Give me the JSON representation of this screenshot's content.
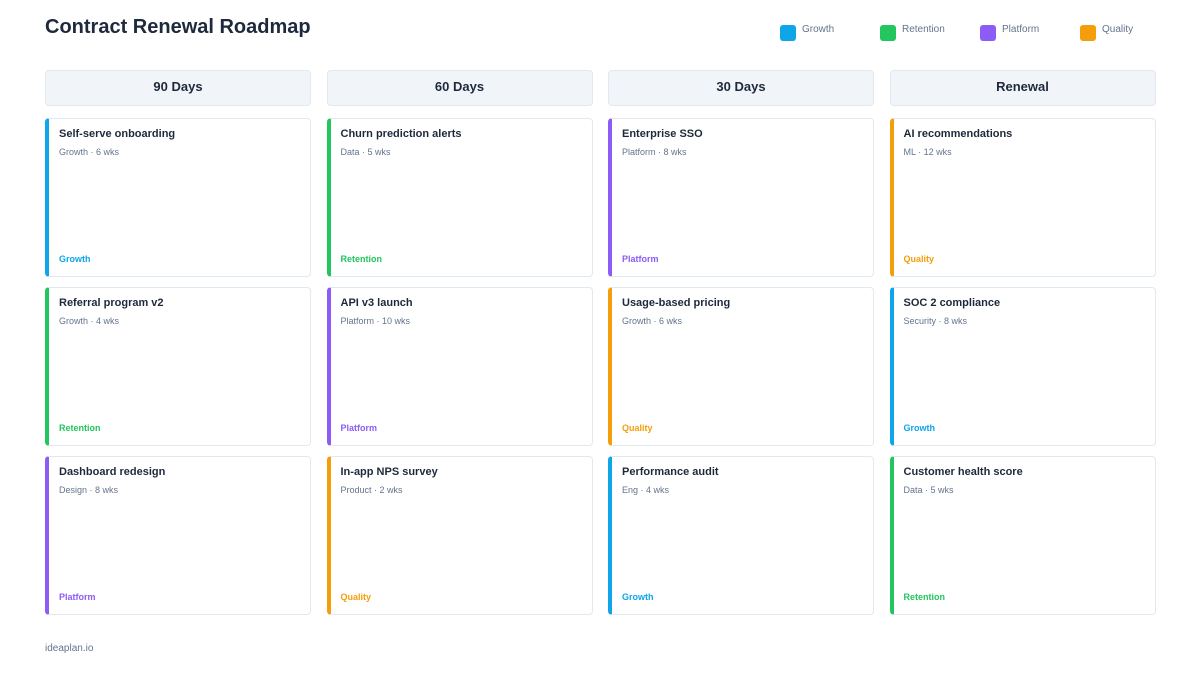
{
  "header": {
    "title": "Contract Renewal Roadmap"
  },
  "legend": [
    {
      "name": "Growth",
      "color": "#0ea5e9"
    },
    {
      "name": "Retention",
      "color": "#22c55e"
    },
    {
      "name": "Platform",
      "color": "#8b5cf6"
    },
    {
      "name": "Quality",
      "color": "#f59e0b"
    }
  ],
  "columns": [
    {
      "title": "90 Days",
      "cards": [
        {
          "title": "Self-serve onboarding",
          "meta": "Growth · 6 wks",
          "tag": "Growth"
        },
        {
          "title": "Referral program v2",
          "meta": "Growth · 4 wks",
          "tag": "Retention"
        },
        {
          "title": "Dashboard redesign",
          "meta": "Design · 8 wks",
          "tag": "Platform"
        }
      ]
    },
    {
      "title": "60 Days",
      "cards": [
        {
          "title": "Churn prediction alerts",
          "meta": "Data · 5 wks",
          "tag": "Retention"
        },
        {
          "title": "API v3 launch",
          "meta": "Platform · 10 wks",
          "tag": "Platform"
        },
        {
          "title": "In-app NPS survey",
          "meta": "Product · 2 wks",
          "tag": "Quality"
        }
      ]
    },
    {
      "title": "30 Days",
      "cards": [
        {
          "title": "Enterprise SSO",
          "meta": "Platform · 8 wks",
          "tag": "Platform"
        },
        {
          "title": "Usage-based pricing",
          "meta": "Growth · 6 wks",
          "tag": "Quality"
        },
        {
          "title": "Performance audit",
          "meta": "Eng · 4 wks",
          "tag": "Growth"
        }
      ]
    },
    {
      "title": "Renewal",
      "cards": [
        {
          "title": "AI recommendations",
          "meta": "ML · 12 wks",
          "tag": "Quality"
        },
        {
          "title": "SOC 2 compliance",
          "meta": "Security · 8 wks",
          "tag": "Growth"
        },
        {
          "title": "Customer health score",
          "meta": "Data · 5 wks",
          "tag": "Retention"
        }
      ]
    }
  ],
  "footer": {
    "text": "ideaplan.io"
  }
}
